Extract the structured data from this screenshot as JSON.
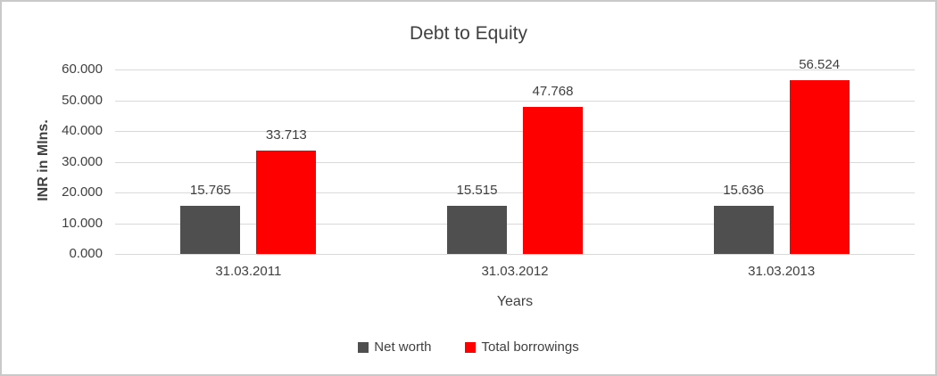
{
  "chart_data": {
    "type": "bar",
    "title": "Debt to Equity",
    "xlabel": "Years",
    "ylabel": "INR in Mlns.",
    "categories": [
      "31.03.2011",
      "31.03.2012",
      "31.03.2013"
    ],
    "series": [
      {
        "name": "Net worth",
        "color": "#4f4f4f",
        "values": [
          15.765,
          15.515,
          15.636
        ],
        "labels": [
          "15.765",
          "15.515",
          "15.636"
        ]
      },
      {
        "name": "Total borrowings",
        "color": "#ff0000",
        "values": [
          33.713,
          47.768,
          56.524
        ],
        "labels": [
          "33.713",
          "47.768",
          "56.524"
        ]
      }
    ],
    "ylim": [
      0,
      60
    ],
    "ytick_step": 10,
    "ytick_labels": [
      "0.000",
      "10.000",
      "20.000",
      "30.000",
      "40.000",
      "50.000",
      "60.000"
    ],
    "grid": true,
    "legend_position": "bottom"
  },
  "colors": {
    "gridline": "#d9d9d9",
    "text": "#404040",
    "frame_border": "#c9c9c9",
    "background": "#ffffff"
  }
}
